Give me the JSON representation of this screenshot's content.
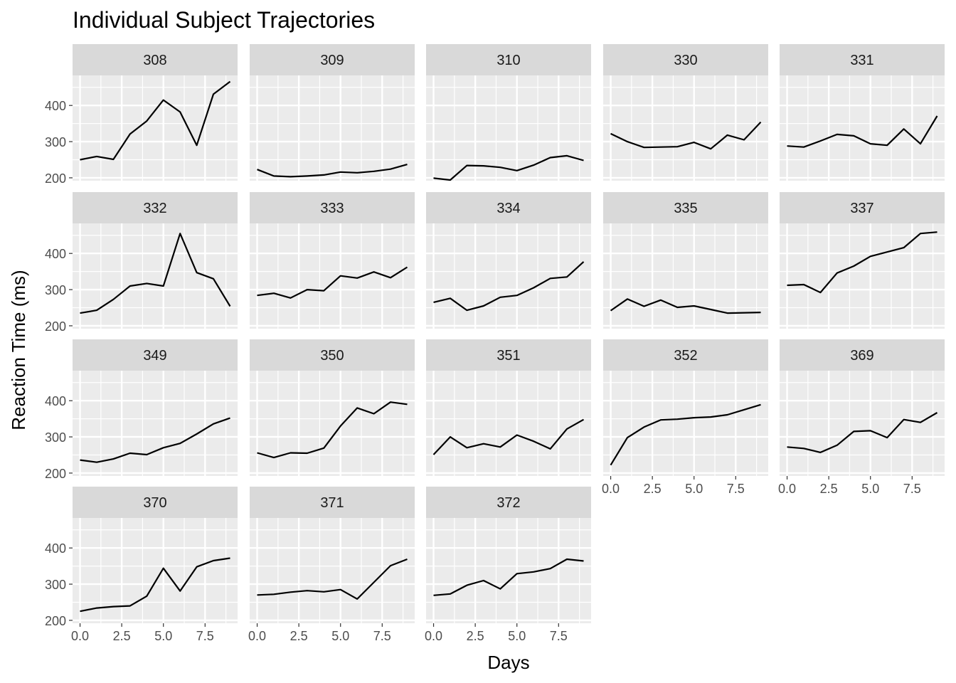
{
  "chart_data": {
    "type": "line",
    "title": "Individual Subject Trajectories",
    "xlabel": "Days",
    "ylabel": "Reaction Time (ms)",
    "xlim": [
      -0.45,
      9.45
    ],
    "ylim": [
      192,
      483
    ],
    "x_ticks": [
      0,
      2.5,
      5,
      7.5
    ],
    "x_tick_labels": [
      "0.0",
      "2.5",
      "5.0",
      "7.5"
    ],
    "y_ticks": [
      200,
      300,
      400
    ],
    "y_tick_labels": [
      "200",
      "300",
      "400"
    ],
    "x": [
      0,
      1,
      2,
      3,
      4,
      5,
      6,
      7,
      8,
      9
    ],
    "line_color": "#000000",
    "panel_background": "#ebebeb",
    "strip_background": "#d9d9d9",
    "series": [
      {
        "name": "308",
        "values": [
          250,
          259,
          251,
          321,
          357,
          415,
          382,
          290,
          431,
          466
        ]
      },
      {
        "name": "309",
        "values": [
          223,
          205,
          203,
          205,
          208,
          216,
          214,
          218,
          224,
          237
        ]
      },
      {
        "name": "310",
        "values": [
          199,
          194,
          234,
          233,
          229,
          220,
          235,
          256,
          261,
          248
        ]
      },
      {
        "name": "330",
        "values": [
          322,
          300,
          284,
          285,
          286,
          298,
          280,
          318,
          305,
          354
        ]
      },
      {
        "name": "331",
        "values": [
          288,
          285,
          302,
          320,
          316,
          294,
          290,
          335,
          294,
          371
        ]
      },
      {
        "name": "332",
        "values": [
          235,
          243,
          273,
          310,
          317,
          310,
          455,
          347,
          330,
          254
        ]
      },
      {
        "name": "333",
        "values": [
          284,
          290,
          277,
          300,
          297,
          338,
          332,
          349,
          333,
          362
        ]
      },
      {
        "name": "334",
        "values": [
          265,
          276,
          243,
          255,
          279,
          284,
          305,
          331,
          335,
          377
        ]
      },
      {
        "name": "335",
        "values": [
          242,
          274,
          254,
          271,
          251,
          255,
          245,
          235,
          236,
          237
        ]
      },
      {
        "name": "337",
        "values": [
          312,
          314,
          292,
          346,
          365,
          392,
          404,
          416,
          455,
          459
        ]
      },
      {
        "name": "349",
        "values": [
          236,
          230,
          239,
          255,
          251,
          270,
          282,
          308,
          336,
          352
        ]
      },
      {
        "name": "350",
        "values": [
          256,
          243,
          256,
          255,
          269,
          330,
          380,
          364,
          396,
          390
        ]
      },
      {
        "name": "351",
        "values": [
          251,
          300,
          270,
          281,
          272,
          305,
          288,
          267,
          322,
          348
        ]
      },
      {
        "name": "352",
        "values": [
          222,
          298,
          327,
          347,
          349,
          353,
          355,
          361,
          375,
          389
        ]
      },
      {
        "name": "369",
        "values": [
          272,
          268,
          257,
          277,
          315,
          317,
          298,
          348,
          340,
          367
        ]
      },
      {
        "name": "370",
        "values": [
          225,
          234,
          238,
          240,
          267,
          344,
          281,
          348,
          365,
          372
        ]
      },
      {
        "name": "371",
        "values": [
          270,
          272,
          278,
          282,
          279,
          285,
          259,
          305,
          351,
          369
        ]
      },
      {
        "name": "372",
        "values": [
          269,
          273,
          297,
          310,
          287,
          329,
          334,
          343,
          369,
          364
        ]
      }
    ]
  }
}
